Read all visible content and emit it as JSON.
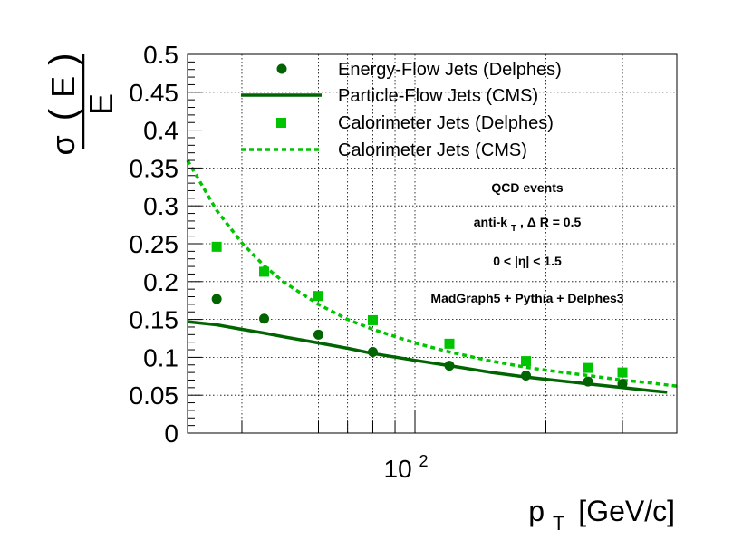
{
  "chart_data": {
    "type": "scatter",
    "xscale": "log",
    "xlim": [
      30,
      400
    ],
    "ylim": [
      0,
      0.5
    ],
    "x_ticks_major": [
      {
        "value": 100,
        "base": "10",
        "exp": "2"
      }
    ],
    "y_ticks": [
      {
        "value": 0,
        "label": "0"
      },
      {
        "value": 0.05,
        "label": "0.05"
      },
      {
        "value": 0.1,
        "label": "0.1"
      },
      {
        "value": 0.15,
        "label": "0.15"
      },
      {
        "value": 0.2,
        "label": "0.2"
      },
      {
        "value": 0.25,
        "label": "0.25"
      },
      {
        "value": 0.3,
        "label": "0.3"
      },
      {
        "value": 0.35,
        "label": "0.35"
      },
      {
        "value": 0.4,
        "label": "0.4"
      },
      {
        "value": 0.45,
        "label": "0.45"
      },
      {
        "value": 0.5,
        "label": "0.5"
      }
    ],
    "xlabel": {
      "main": "p",
      "sub": "T",
      "units": "[GeV/c]"
    },
    "ylabel": {
      "sigma": "σ",
      "arg": "E",
      "denominator": "E"
    },
    "series": [
      {
        "name": "Energy-Flow Jets (Delphes)",
        "style": "circle",
        "color": "#006400",
        "x": [
          35,
          45,
          60,
          80,
          120,
          180,
          250,
          300
        ],
        "y": [
          0.177,
          0.151,
          0.13,
          0.107,
          0.089,
          0.076,
          0.068,
          0.065
        ]
      },
      {
        "name": "Particle-Flow Jets (CMS)",
        "style": "solid-line",
        "color": "#006400",
        "x": [
          30,
          35,
          40,
          45,
          50,
          60,
          70,
          80,
          100,
          120,
          150,
          180,
          200,
          250,
          300,
          350,
          380
        ],
        "y": [
          0.147,
          0.143,
          0.137,
          0.132,
          0.127,
          0.119,
          0.112,
          0.105,
          0.096,
          0.089,
          0.08,
          0.074,
          0.071,
          0.065,
          0.06,
          0.056,
          0.054
        ]
      },
      {
        "name": "Calorimeter Jets (Delphes)",
        "style": "square",
        "color": "#00c400",
        "x": [
          35,
          45,
          60,
          80,
          120,
          180,
          250,
          300
        ],
        "y": [
          0.246,
          0.213,
          0.181,
          0.149,
          0.118,
          0.095,
          0.086,
          0.08
        ]
      },
      {
        "name": "Calorimeter Jets (CMS)",
        "style": "dashed-line",
        "color": "#00c400",
        "x": [
          30,
          35,
          40,
          45,
          50,
          60,
          70,
          80,
          100,
          120,
          150,
          180,
          200,
          250,
          300,
          350,
          400
        ],
        "y": [
          0.36,
          0.294,
          0.251,
          0.221,
          0.199,
          0.17,
          0.15,
          0.137,
          0.119,
          0.107,
          0.095,
          0.087,
          0.083,
          0.076,
          0.07,
          0.066,
          0.062
        ]
      }
    ],
    "annotations": {
      "line1": "QCD events",
      "line2_main": "anti-k",
      "line2_sub": "T",
      "line2_rest": ", Δ R = 0.5",
      "line3": "0 < |η| < 1.5",
      "line4": "MadGraph5 + Pythia + Delphes3"
    },
    "grid": true,
    "legend_position": "top-right"
  }
}
